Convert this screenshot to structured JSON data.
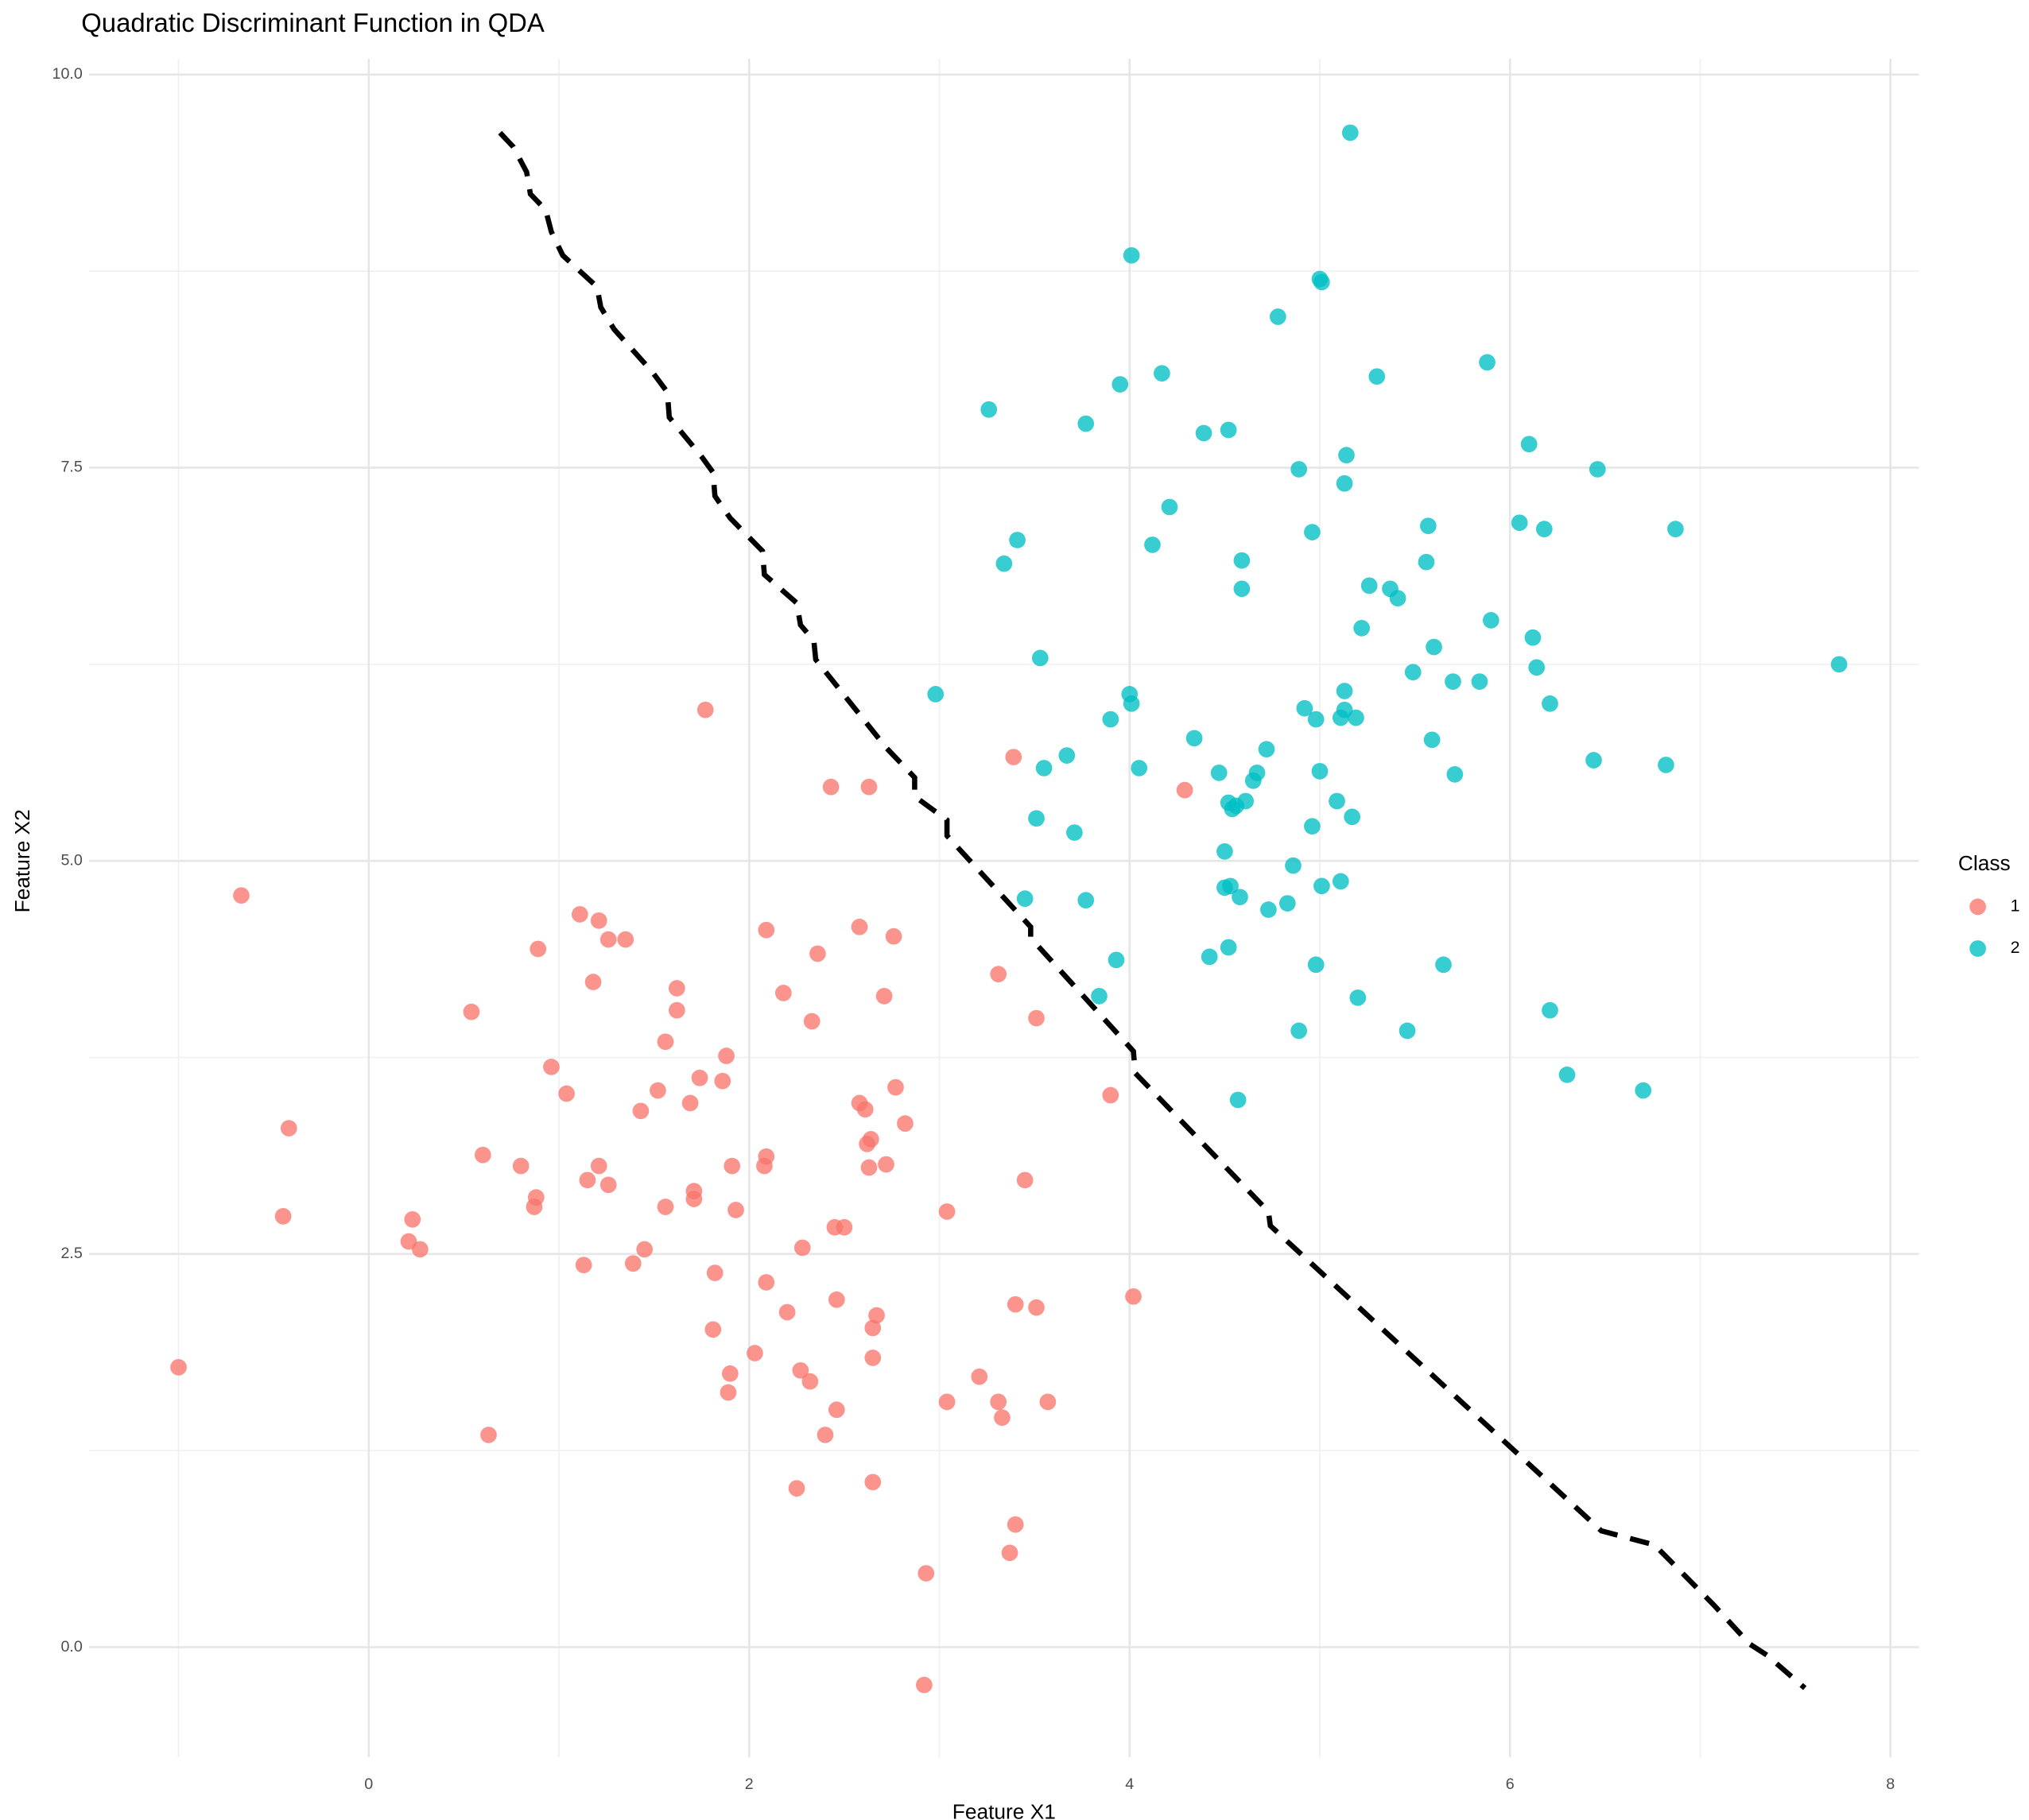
{
  "chart_data": {
    "type": "scatter",
    "title": "Quadratic Discriminant Function in QDA",
    "x_label": "Feature X1",
    "y_label": "Feature X2",
    "legend_title": "Class",
    "legend_position": "right",
    "grid": true,
    "xlim": [
      -1.47,
      8.15
    ],
    "ylim": [
      -0.7,
      10.1
    ],
    "xticks": [
      0,
      2,
      4,
      6,
      8
    ],
    "yticks": [
      {
        "value": 0,
        "label": "0.0"
      },
      2.5,
      {
        "value": 5,
        "label": "5.0"
      },
      7.5,
      {
        "value": 10,
        "label": "10.0"
      }
    ],
    "xminor": [
      -1,
      1,
      3,
      5,
      7
    ],
    "yminor": [
      1.25,
      3.75,
      6.25,
      8.75
    ],
    "series": [
      {
        "name": "1",
        "color": "#F8766D",
        "x": [
          -1.0,
          -0.67,
          -0.42,
          -0.45,
          0.23,
          0.21,
          0.27,
          0.54,
          0.6,
          0.63,
          0.8,
          0.87,
          0.88,
          0.89,
          0.96,
          1.04,
          1.11,
          1.13,
          1.15,
          1.18,
          1.21,
          1.21,
          1.26,
          1.26,
          1.35,
          1.39,
          1.43,
          1.45,
          1.52,
          1.56,
          1.56,
          1.62,
          1.62,
          1.69,
          1.71,
          1.71,
          1.74,
          1.77,
          1.81,
          1.82,
          1.86,
          1.88,
          1.89,
          1.9,
          1.91,
          1.93,
          2.03,
          2.08,
          2.09,
          2.09,
          2.09,
          2.18,
          2.2,
          2.25,
          2.27,
          2.28,
          2.32,
          2.33,
          2.36,
          2.4,
          2.43,
          2.45,
          2.46,
          2.46,
          2.5,
          2.58,
          2.58,
          2.61,
          2.62,
          2.63,
          2.63,
          2.64,
          2.65,
          2.65,
          2.65,
          2.67,
          2.71,
          2.72,
          2.76,
          2.77,
          2.82,
          2.92,
          2.93,
          3.04,
          3.04,
          3.21,
          3.31,
          3.31,
          3.33,
          3.39,
          3.4,
          3.4,
          3.37,
          3.45,
          3.51,
          3.51,
          3.57,
          3.9,
          4.02,
          4.29
        ],
        "y": [
          1.78,
          4.78,
          3.3,
          2.74,
          2.72,
          2.58,
          2.53,
          4.04,
          3.13,
          1.35,
          3.06,
          2.8,
          2.86,
          4.44,
          3.69,
          3.52,
          4.66,
          2.43,
          2.97,
          4.23,
          4.62,
          3.06,
          2.94,
          4.5,
          4.5,
          2.44,
          3.41,
          2.53,
          3.54,
          3.85,
          2.8,
          4.19,
          4.05,
          3.46,
          2.85,
          2.9,
          3.62,
          5.96,
          2.02,
          2.38,
          3.6,
          3.76,
          1.62,
          1.74,
          3.06,
          2.78,
          1.87,
          3.06,
          4.56,
          3.12,
          2.32,
          4.16,
          2.13,
          1.01,
          1.76,
          2.54,
          1.69,
          3.98,
          4.41,
          1.35,
          5.47,
          2.67,
          2.21,
          1.51,
          2.67,
          4.58,
          3.46,
          3.42,
          3.2,
          5.47,
          3.05,
          3.23,
          2.03,
          1.05,
          1.84,
          2.11,
          4.14,
          3.07,
          4.52,
          3.56,
          3.33,
          -0.24,
          0.47,
          2.77,
          1.56,
          1.72,
          1.56,
          4.28,
          1.46,
          5.66,
          2.18,
          0.78,
          0.6,
          2.97,
          2.16,
          4.0,
          1.56,
          3.51,
          2.23,
          5.45
        ]
      },
      {
        "name": "2",
        "color": "#00BFC4",
        "x": [
          2.98,
          3.26,
          3.34,
          3.41,
          3.45,
          3.51,
          3.53,
          3.55,
          3.67,
          3.71,
          3.77,
          3.77,
          3.84,
          3.9,
          3.93,
          3.95,
          4.0,
          4.01,
          4.01,
          4.05,
          4.12,
          4.17,
          4.21,
          4.34,
          4.39,
          4.42,
          4.47,
          4.5,
          4.5,
          4.52,
          4.52,
          4.52,
          4.53,
          4.54,
          4.56,
          4.57,
          4.58,
          4.59,
          4.59,
          4.61,
          4.65,
          4.67,
          4.72,
          4.73,
          4.78,
          4.83,
          4.86,
          4.89,
          4.89,
          4.92,
          4.96,
          4.96,
          4.98,
          4.98,
          5.0,
          5.0,
          5.01,
          5.01,
          5.09,
          5.11,
          5.11,
          5.13,
          5.13,
          5.13,
          5.14,
          5.16,
          5.17,
          5.19,
          5.2,
          5.22,
          5.26,
          5.3,
          5.37,
          5.41,
          5.46,
          5.49,
          5.56,
          5.57,
          5.59,
          5.6,
          5.65,
          5.7,
          5.71,
          5.84,
          5.88,
          5.9,
          6.05,
          6.1,
          6.12,
          6.14,
          6.18,
          6.21,
          6.21,
          6.3,
          6.44,
          6.46,
          6.7,
          6.82,
          6.87,
          7.73
        ],
        "y": [
          6.06,
          7.87,
          6.89,
          7.04,
          4.76,
          5.27,
          6.29,
          5.59,
          5.67,
          5.18,
          7.78,
          4.75,
          4.14,
          5.9,
          4.37,
          8.03,
          6.06,
          6.0,
          8.85,
          5.59,
          7.01,
          8.1,
          7.25,
          5.78,
          7.72,
          4.39,
          5.56,
          4.83,
          5.06,
          5.37,
          7.74,
          4.45,
          4.84,
          5.33,
          5.35,
          3.48,
          4.77,
          6.91,
          6.73,
          5.38,
          5.51,
          5.56,
          5.71,
          4.69,
          8.46,
          4.73,
          4.97,
          7.49,
          3.92,
          5.97,
          5.22,
          7.09,
          4.34,
          5.9,
          8.7,
          5.57,
          4.84,
          8.68,
          5.38,
          4.87,
          5.91,
          5.96,
          6.08,
          7.4,
          7.58,
          9.63,
          5.28,
          5.91,
          4.13,
          6.48,
          6.75,
          8.08,
          6.73,
          6.67,
          3.92,
          6.2,
          6.9,
          7.13,
          5.77,
          6.36,
          4.34,
          6.14,
          5.55,
          6.14,
          8.17,
          6.53,
          7.15,
          7.65,
          6.42,
          6.23,
          7.11,
          4.05,
          6.0,
          3.64,
          5.64,
          7.49,
          3.54,
          5.61,
          7.11,
          6.25
        ]
      }
    ],
    "boundary": {
      "color": "#000000",
      "x": [
        0.69,
        0.76,
        0.83,
        0.85,
        0.93,
        0.96,
        1.02,
        1.2,
        1.22,
        1.29,
        1.49,
        1.57,
        1.58,
        1.75,
        1.81,
        1.82,
        1.9,
        2.07,
        2.08,
        2.25,
        2.27,
        2.34,
        2.35,
        2.72,
        2.87,
        2.87,
        3.04,
        3.04,
        3.48,
        3.48,
        4.02,
        4.03,
        4.73,
        4.74,
        6.48,
        6.76,
        7.07,
        7.26,
        7.35,
        7.55
      ],
      "y": [
        9.63,
        9.54,
        9.38,
        9.24,
        9.14,
        9.0,
        8.85,
        8.65,
        8.52,
        8.38,
        8.11,
        7.98,
        7.82,
        7.57,
        7.47,
        7.32,
        7.18,
        6.97,
        6.82,
        6.64,
        6.5,
        6.4,
        6.28,
        5.72,
        5.53,
        5.41,
        5.26,
        5.16,
        4.58,
        4.51,
        3.79,
        3.65,
        2.77,
        2.68,
        0.74,
        0.65,
        0.27,
        0.02,
        -0.05,
        -0.26
      ]
    }
  }
}
